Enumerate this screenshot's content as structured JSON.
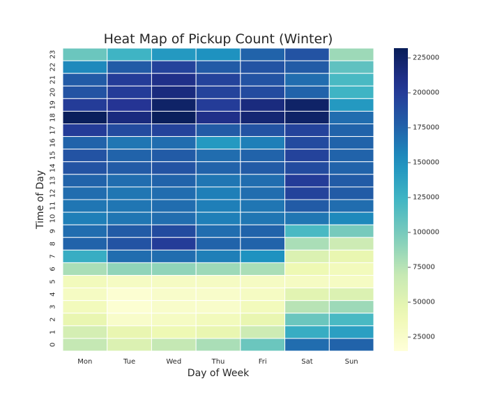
{
  "chart_data": {
    "type": "heatmap",
    "title": "Heat Map of Pickup Count (Winter)",
    "xlabel": "Day of Week",
    "ylabel": "Time of Day",
    "columns": [
      "Mon",
      "Tue",
      "Wed",
      "Thu",
      "Fri",
      "Sat",
      "Sun"
    ],
    "rows": [
      "23",
      "22",
      "21",
      "20",
      "19",
      "18",
      "17",
      "16",
      "15",
      "14",
      "13",
      "12",
      "11",
      "10",
      "9",
      "8",
      "7",
      "6",
      "5",
      "4",
      "3",
      "2",
      "1",
      "0"
    ],
    "values": [
      [
        105000,
        125000,
        145000,
        150000,
        175000,
        185000,
        85000
      ],
      [
        155000,
        180000,
        195000,
        180000,
        185000,
        180000,
        110000
      ],
      [
        180000,
        200000,
        210000,
        195000,
        185000,
        170000,
        120000
      ],
      [
        185000,
        200000,
        215000,
        195000,
        190000,
        175000,
        125000
      ],
      [
        200000,
        205000,
        225000,
        200000,
        215000,
        225000,
        145000
      ],
      [
        230000,
        215000,
        230000,
        210000,
        220000,
        225000,
        170000
      ],
      [
        200000,
        190000,
        195000,
        180000,
        185000,
        195000,
        175000
      ],
      [
        175000,
        165000,
        170000,
        145000,
        160000,
        190000,
        175000
      ],
      [
        185000,
        175000,
        180000,
        170000,
        175000,
        195000,
        175000
      ],
      [
        185000,
        180000,
        185000,
        175000,
        180000,
        190000,
        175000
      ],
      [
        175000,
        170000,
        175000,
        165000,
        170000,
        200000,
        180000
      ],
      [
        170000,
        165000,
        170000,
        160000,
        170000,
        195000,
        180000
      ],
      [
        165000,
        165000,
        170000,
        160000,
        165000,
        180000,
        170000
      ],
      [
        160000,
        165000,
        170000,
        160000,
        165000,
        165000,
        155000
      ],
      [
        170000,
        180000,
        190000,
        170000,
        175000,
        120000,
        100000
      ],
      [
        175000,
        185000,
        200000,
        175000,
        175000,
        80000,
        65000
      ],
      [
        130000,
        170000,
        170000,
        160000,
        150000,
        55000,
        45000
      ],
      [
        80000,
        90000,
        90000,
        85000,
        80000,
        40000,
        35000
      ],
      [
        35000,
        30000,
        30000,
        30000,
        30000,
        30000,
        30000
      ],
      [
        30000,
        20000,
        25000,
        25000,
        30000,
        50000,
        55000
      ],
      [
        35000,
        20000,
        25000,
        25000,
        35000,
        75000,
        85000
      ],
      [
        45000,
        25000,
        30000,
        35000,
        45000,
        105000,
        120000
      ],
      [
        60000,
        45000,
        40000,
        45000,
        65000,
        130000,
        140000
      ],
      [
        70000,
        55000,
        70000,
        80000,
        105000,
        170000,
        175000
      ]
    ],
    "colorbar": {
      "min": 15000,
      "max": 232000,
      "ticks": [
        25000,
        50000,
        75000,
        100000,
        125000,
        150000,
        175000,
        200000,
        225000
      ],
      "tick_labels": [
        "25000",
        "50000",
        "75000",
        "100000",
        "125000",
        "150000",
        "175000",
        "200000",
        "225000"
      ],
      "colormap": "YlGnBu"
    },
    "grid": false,
    "cell_borders": "white"
  }
}
